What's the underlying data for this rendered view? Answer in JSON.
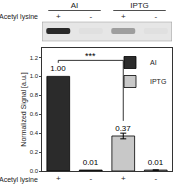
{
  "blot": {
    "groups": [
      "AI",
      "IPTG"
    ],
    "row_label": "Acetyl lysine",
    "lanes": [
      "+",
      "-",
      "+",
      "-"
    ]
  },
  "chart_data": {
    "type": "bar",
    "y_label": "Normalized Signal [a.u.]",
    "x_label": "Acetyl lysine",
    "categories": [
      "+",
      "-",
      "+",
      "-"
    ],
    "series": [
      {
        "name": "AI",
        "color": "#2b2b2b",
        "values": [
          1.0,
          0.01,
          null,
          null
        ],
        "value_labels": [
          "1.00",
          "0.01",
          null,
          null
        ],
        "errors": [
          null,
          null,
          null,
          null
        ]
      },
      {
        "name": "IPTG",
        "color": "#c8c8c8",
        "values": [
          null,
          null,
          0.37,
          0.01
        ],
        "value_labels": [
          null,
          null,
          "0.37",
          "0.01"
        ],
        "errors": [
          null,
          null,
          0.03,
          null
        ]
      }
    ],
    "annotations": [
      {
        "text": "***",
        "between": [
          0,
          2
        ]
      }
    ],
    "ylim": [
      0,
      1.3
    ],
    "yticks": [
      {
        "value": 0,
        "label": "0.0"
      },
      {
        "value": 0.2,
        "label": "0.2"
      },
      {
        "value": 0.4,
        "label": "0.4"
      },
      {
        "value": 0.6,
        "label": "0.6"
      },
      {
        "value": 0.8,
        "label": "0.8"
      },
      {
        "value": 1,
        "label": "1.0"
      },
      {
        "value": 1.2,
        "label": "1.2"
      }
    ],
    "data_labels": true,
    "legend": "top right",
    "grid": false
  }
}
